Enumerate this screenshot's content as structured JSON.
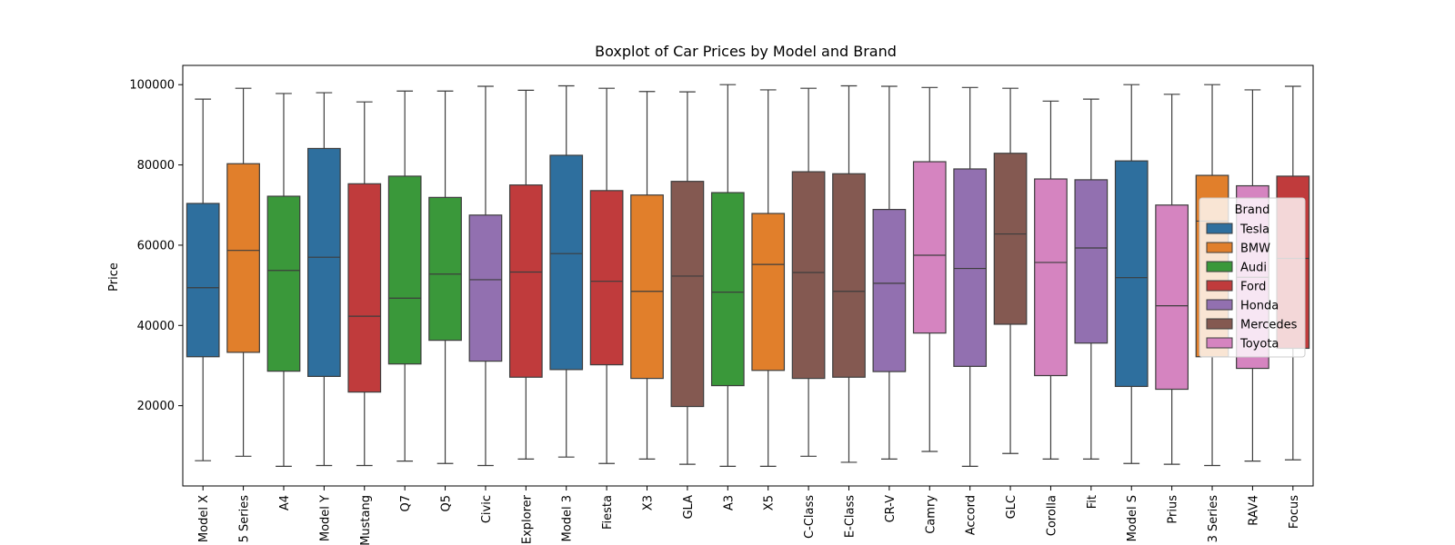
{
  "chart_data": {
    "type": "boxplot",
    "title": "Boxplot of Car Prices by Model and Brand",
    "xlabel": "",
    "ylabel": "Price",
    "ylim": [
      0,
      104800
    ],
    "yticks": [
      20000,
      40000,
      60000,
      80000,
      100000
    ],
    "grid": false,
    "legend": {
      "title": "Brand",
      "placement": "right",
      "entries": [
        {
          "name": "Tesla",
          "color": "#2e6f9e"
        },
        {
          "name": "BMW",
          "color": "#e17f2b"
        },
        {
          "name": "Audi",
          "color": "#3a983a"
        },
        {
          "name": "Ford",
          "color": "#c03b3c"
        },
        {
          "name": "Honda",
          "color": "#9270b0"
        },
        {
          "name": "Mercedes",
          "color": "#845951"
        },
        {
          "name": "Toyota",
          "color": "#d584c0"
        }
      ]
    },
    "boxes": [
      {
        "model": "Model X",
        "brand": "Tesla",
        "whislo": 6300,
        "q1": 32200,
        "med": 49400,
        "q3": 70400,
        "whishi": 96400
      },
      {
        "model": "5 Series",
        "brand": "BMW",
        "whislo": 7400,
        "q1": 33300,
        "med": 58700,
        "q3": 80300,
        "whishi": 99100
      },
      {
        "model": "A4",
        "brand": "Audi",
        "whislo": 4900,
        "q1": 28600,
        "med": 53700,
        "q3": 72200,
        "whishi": 97800
      },
      {
        "model": "Model Y",
        "brand": "Tesla",
        "whislo": 5100,
        "q1": 27300,
        "med": 57000,
        "q3": 84100,
        "whishi": 98000
      },
      {
        "model": "Mustang",
        "brand": "Ford",
        "whislo": 5100,
        "q1": 23400,
        "med": 42300,
        "q3": 75300,
        "whishi": 95700
      },
      {
        "model": "Q7",
        "brand": "Audi",
        "whislo": 6200,
        "q1": 30400,
        "med": 46800,
        "q3": 77200,
        "whishi": 98400
      },
      {
        "model": "Q5",
        "brand": "Audi",
        "whislo": 5600,
        "q1": 36300,
        "med": 52800,
        "q3": 71900,
        "whishi": 98400
      },
      {
        "model": "Civic",
        "brand": "Honda",
        "whislo": 5100,
        "q1": 31100,
        "med": 51400,
        "q3": 67500,
        "whishi": 99600
      },
      {
        "model": "Explorer",
        "brand": "Ford",
        "whislo": 6700,
        "q1": 27100,
        "med": 53300,
        "q3": 75000,
        "whishi": 98600
      },
      {
        "model": "Model 3",
        "brand": "Tesla",
        "whislo": 7200,
        "q1": 29000,
        "med": 57900,
        "q3": 82400,
        "whishi": 99700
      },
      {
        "model": "Fiesta",
        "brand": "Ford",
        "whislo": 5600,
        "q1": 30200,
        "med": 51000,
        "q3": 73600,
        "whishi": 99100
      },
      {
        "model": "X3",
        "brand": "BMW",
        "whislo": 6700,
        "q1": 26800,
        "med": 48500,
        "q3": 72500,
        "whishi": 98300
      },
      {
        "model": "GLA",
        "brand": "Mercedes",
        "whislo": 5400,
        "q1": 19800,
        "med": 52300,
        "q3": 75900,
        "whishi": 98200
      },
      {
        "model": "A3",
        "brand": "Audi",
        "whislo": 4900,
        "q1": 25000,
        "med": 48300,
        "q3": 73100,
        "whishi": 100000
      },
      {
        "model": "X5",
        "brand": "BMW",
        "whislo": 4900,
        "q1": 28800,
        "med": 55200,
        "q3": 67900,
        "whishi": 98700
      },
      {
        "model": "C-Class",
        "brand": "Mercedes",
        "whislo": 7400,
        "q1": 26800,
        "med": 53200,
        "q3": 78300,
        "whishi": 99100
      },
      {
        "model": "E-Class",
        "brand": "Mercedes",
        "whislo": 5900,
        "q1": 27100,
        "med": 48500,
        "q3": 77800,
        "whishi": 99700
      },
      {
        "model": "CR-V",
        "brand": "Honda",
        "whislo": 6700,
        "q1": 28500,
        "med": 50500,
        "q3": 68900,
        "whishi": 99600
      },
      {
        "model": "Camry",
        "brand": "Toyota",
        "whislo": 8600,
        "q1": 38100,
        "med": 57500,
        "q3": 80800,
        "whishi": 99300
      },
      {
        "model": "Accord",
        "brand": "Honda",
        "whislo": 4900,
        "q1": 29800,
        "med": 54200,
        "q3": 79000,
        "whishi": 99300
      },
      {
        "model": "GLC",
        "brand": "Mercedes",
        "whislo": 8100,
        "q1": 40300,
        "med": 62800,
        "q3": 82900,
        "whishi": 99100
      },
      {
        "model": "Corolla",
        "brand": "Toyota",
        "whislo": 6700,
        "q1": 27500,
        "med": 55700,
        "q3": 76500,
        "whishi": 95900
      },
      {
        "model": "Fit",
        "brand": "Honda",
        "whislo": 6700,
        "q1": 35600,
        "med": 59300,
        "q3": 76300,
        "whishi": 96400
      },
      {
        "model": "Model S",
        "brand": "Tesla",
        "whislo": 5600,
        "q1": 24800,
        "med": 51900,
        "q3": 81000,
        "whishi": 100000
      },
      {
        "model": "Prius",
        "brand": "Toyota",
        "whislo": 5400,
        "q1": 24100,
        "med": 44900,
        "q3": 70000,
        "whishi": 97600
      },
      {
        "model": "3 Series",
        "brand": "BMW",
        "whislo": 5100,
        "q1": 32200,
        "med": 66000,
        "q3": 77400,
        "whishi": 100000
      },
      {
        "model": "RAV4",
        "brand": "Toyota",
        "whislo": 6200,
        "q1": 29300,
        "med": 52000,
        "q3": 74800,
        "whishi": 98700
      },
      {
        "model": "Focus",
        "brand": "Ford",
        "whislo": 6500,
        "q1": 34300,
        "med": 56700,
        "q3": 77200,
        "whishi": 99600
      }
    ]
  }
}
